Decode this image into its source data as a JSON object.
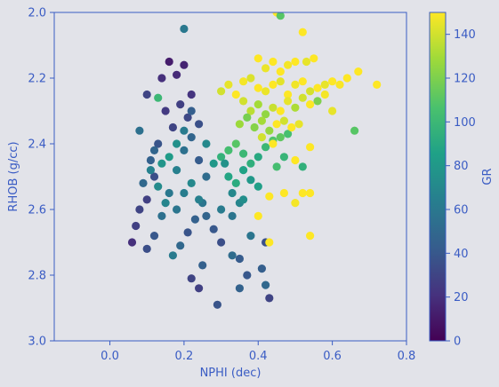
{
  "chart_data": {
    "type": "scatter",
    "title": "",
    "xlabel": "NPHI (dec)",
    "ylabel": "RHOB (g/cc)",
    "xlim": [
      -0.15,
      0.8
    ],
    "ylim": [
      3.0,
      2.0
    ],
    "y_inverted": true,
    "x_ticks": [
      "0.0",
      "0.2",
      "0.4",
      "0.6",
      "0.8"
    ],
    "y_ticks": [
      "2.0",
      "2.2",
      "2.4",
      "2.6",
      "2.8",
      "3.0"
    ],
    "colorbar": {
      "label": "GR",
      "range": [
        0,
        150
      ],
      "ticks": [
        "0",
        "20",
        "40",
        "60",
        "80",
        "100",
        "120",
        "140"
      ],
      "colormap": "viridis"
    },
    "grid": false,
    "legend": "none",
    "colors": {
      "background": "#e2e3e9",
      "axis": "#3a5cc4",
      "viridis_low": "#440154",
      "viridis_high": "#fde725"
    },
    "series": [
      {
        "points": [
          [
            0.1,
            2.57,
            28
          ],
          [
            0.12,
            2.5,
            35
          ],
          [
            0.14,
            2.2,
            20
          ],
          [
            0.16,
            2.15,
            12
          ],
          [
            0.18,
            2.19,
            18
          ],
          [
            0.2,
            2.16,
            15
          ],
          [
            0.22,
            2.25,
            22
          ],
          [
            0.15,
            2.3,
            25
          ],
          [
            0.17,
            2.35,
            30
          ],
          [
            0.19,
            2.28,
            28
          ],
          [
            0.21,
            2.32,
            32
          ],
          [
            0.13,
            2.4,
            38
          ],
          [
            0.11,
            2.45,
            45
          ],
          [
            0.09,
            2.52,
            50
          ],
          [
            0.08,
            2.6,
            30
          ],
          [
            0.07,
            2.65,
            28
          ],
          [
            0.06,
            2.7,
            20
          ],
          [
            0.1,
            2.72,
            35
          ],
          [
            0.12,
            2.68,
            40
          ],
          [
            0.14,
            2.62,
            55
          ],
          [
            0.16,
            2.55,
            60
          ],
          [
            0.18,
            2.48,
            65
          ],
          [
            0.2,
            2.42,
            55
          ],
          [
            0.22,
            2.38,
            48
          ],
          [
            0.24,
            2.45,
            42
          ],
          [
            0.26,
            2.5,
            52
          ],
          [
            0.25,
            2.58,
            58
          ],
          [
            0.23,
            2.63,
            45
          ],
          [
            0.21,
            2.67,
            38
          ],
          [
            0.19,
            2.71,
            50
          ],
          [
            0.17,
            2.74,
            62
          ],
          [
            0.15,
            2.58,
            68
          ],
          [
            0.13,
            2.53,
            72
          ],
          [
            0.11,
            2.48,
            66
          ],
          [
            0.18,
            2.6,
            58
          ],
          [
            0.2,
            2.55,
            63
          ],
          [
            0.22,
            2.52,
            70
          ],
          [
            0.24,
            2.57,
            65
          ],
          [
            0.26,
            2.62,
            48
          ],
          [
            0.28,
            2.66,
            40
          ],
          [
            0.3,
            2.7,
            35
          ],
          [
            0.25,
            2.77,
            45
          ],
          [
            0.22,
            2.81,
            30
          ],
          [
            0.24,
            2.84,
            28
          ],
          [
            0.29,
            2.89,
            38
          ],
          [
            0.35,
            2.75,
            42
          ],
          [
            0.37,
            2.8,
            40
          ],
          [
            0.41,
            2.78,
            44
          ],
          [
            0.42,
            2.83,
            50
          ],
          [
            0.43,
            2.87,
            30
          ],
          [
            0.35,
            2.84,
            46
          ],
          [
            0.33,
            2.74,
            52
          ],
          [
            0.38,
            2.68,
            58
          ],
          [
            0.42,
            2.7,
            36
          ],
          [
            0.2,
            2.05,
            60
          ],
          [
            0.13,
            2.26,
            100
          ],
          [
            0.1,
            2.25,
            30
          ],
          [
            0.08,
            2.36,
            55
          ],
          [
            0.12,
            2.42,
            48
          ],
          [
            0.14,
            2.46,
            78
          ],
          [
            0.16,
            2.44,
            82
          ],
          [
            0.18,
            2.4,
            75
          ],
          [
            0.2,
            2.36,
            62
          ],
          [
            0.22,
            2.3,
            44
          ],
          [
            0.24,
            2.34,
            36
          ],
          [
            0.26,
            2.4,
            70
          ],
          [
            0.28,
            2.46,
            80
          ],
          [
            0.3,
            2.44,
            96
          ],
          [
            0.32,
            2.42,
            104
          ],
          [
            0.34,
            2.4,
            110
          ],
          [
            0.36,
            2.43,
            100
          ],
          [
            0.38,
            2.46,
            94
          ],
          [
            0.4,
            2.44,
            90
          ],
          [
            0.42,
            2.41,
            100
          ],
          [
            0.44,
            2.39,
            108
          ],
          [
            0.46,
            2.38,
            112
          ],
          [
            0.48,
            2.37,
            105
          ],
          [
            0.32,
            2.5,
            88
          ],
          [
            0.34,
            2.52,
            92
          ],
          [
            0.36,
            2.48,
            86
          ],
          [
            0.38,
            2.51,
            80
          ],
          [
            0.4,
            2.53,
            84
          ],
          [
            0.31,
            2.46,
            76
          ],
          [
            0.33,
            2.55,
            70
          ],
          [
            0.35,
            2.58,
            68
          ],
          [
            0.3,
            2.6,
            62
          ],
          [
            0.33,
            2.62,
            58
          ],
          [
            0.36,
            2.57,
            74
          ],
          [
            0.45,
            2.47,
            104
          ],
          [
            0.47,
            2.44,
            98
          ],
          [
            0.66,
            2.36,
            110
          ],
          [
            0.52,
            2.47,
            95
          ],
          [
            0.3,
            2.24,
            140
          ],
          [
            0.32,
            2.22,
            145
          ],
          [
            0.34,
            2.25,
            150
          ],
          [
            0.36,
            2.21,
            148
          ],
          [
            0.38,
            2.2,
            142
          ],
          [
            0.4,
            2.23,
            150
          ],
          [
            0.42,
            2.24,
            146
          ],
          [
            0.44,
            2.22,
            150
          ],
          [
            0.46,
            2.21,
            144
          ],
          [
            0.48,
            2.25,
            150
          ],
          [
            0.5,
            2.22,
            147
          ],
          [
            0.52,
            2.21,
            150
          ],
          [
            0.54,
            2.24,
            141
          ],
          [
            0.56,
            2.23,
            150
          ],
          [
            0.58,
            2.22,
            145
          ],
          [
            0.6,
            2.21,
            150
          ],
          [
            0.62,
            2.22,
            149
          ],
          [
            0.64,
            2.2,
            150
          ],
          [
            0.67,
            2.18,
            150
          ],
          [
            0.72,
            2.22,
            150
          ],
          [
            0.4,
            2.14,
            150
          ],
          [
            0.42,
            2.17,
            146
          ],
          [
            0.44,
            2.15,
            150
          ],
          [
            0.46,
            2.18,
            150
          ],
          [
            0.48,
            2.16,
            148
          ],
          [
            0.5,
            2.15,
            150
          ],
          [
            0.52,
            2.06,
            150
          ],
          [
            0.53,
            2.15,
            145
          ],
          [
            0.55,
            2.14,
            150
          ],
          [
            0.45,
            2.0,
            150
          ],
          [
            0.46,
            2.01,
            110
          ],
          [
            0.36,
            2.27,
            140
          ],
          [
            0.38,
            2.3,
            135
          ],
          [
            0.4,
            2.28,
            130
          ],
          [
            0.42,
            2.31,
            125
          ],
          [
            0.44,
            2.29,
            138
          ],
          [
            0.46,
            2.3,
            150
          ],
          [
            0.48,
            2.27,
            145
          ],
          [
            0.5,
            2.29,
            132
          ],
          [
            0.52,
            2.26,
            140
          ],
          [
            0.54,
            2.28,
            150
          ],
          [
            0.56,
            2.27,
            120
          ],
          [
            0.58,
            2.25,
            148
          ],
          [
            0.6,
            2.3,
            145
          ],
          [
            0.35,
            2.34,
            128
          ],
          [
            0.37,
            2.32,
            118
          ],
          [
            0.39,
            2.35,
            122
          ],
          [
            0.41,
            2.33,
            130
          ],
          [
            0.43,
            2.36,
            126
          ],
          [
            0.45,
            2.34,
            150
          ],
          [
            0.47,
            2.33,
            140
          ],
          [
            0.49,
            2.35,
            150
          ],
          [
            0.51,
            2.34,
            145
          ],
          [
            0.54,
            2.41,
            150
          ],
          [
            0.52,
            2.55,
            150
          ],
          [
            0.5,
            2.58,
            148
          ],
          [
            0.54,
            2.55,
            150
          ],
          [
            0.43,
            2.56,
            150
          ],
          [
            0.47,
            2.55,
            150
          ],
          [
            0.4,
            2.62,
            150
          ],
          [
            0.43,
            2.7,
            150
          ],
          [
            0.54,
            2.68,
            150
          ],
          [
            0.5,
            2.45,
            150
          ],
          [
            0.44,
            2.4,
            150
          ],
          [
            0.41,
            2.38,
            140
          ]
        ]
      }
    ]
  }
}
